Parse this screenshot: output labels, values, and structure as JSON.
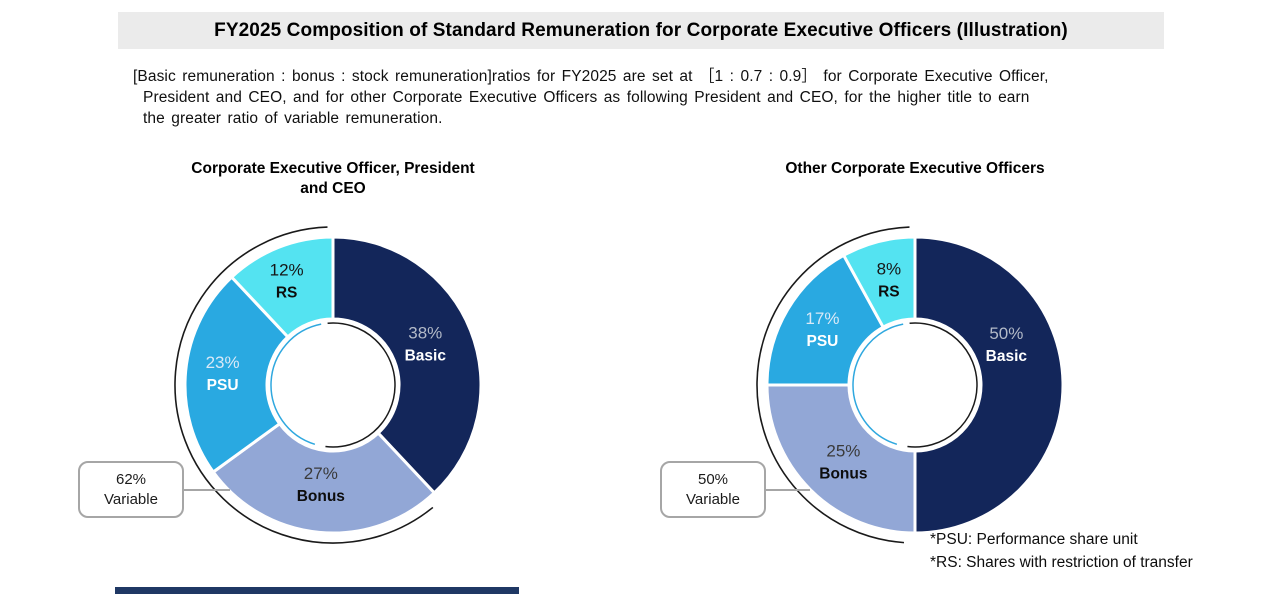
{
  "title_bar": {
    "text": "FY2025 Composition of Standard Remuneration for Corporate Executive Officers (Illustration)",
    "background": "#ebebeb"
  },
  "intro": {
    "lines": [
      "[Basic remuneration : bonus : stock remuneration]ratios for FY2025 are set at ［1 : 0.7 : 0.9］ for Corporate Executive Officer,",
      "President and CEO, and for other Corporate Executive Officers as following President and CEO, for the higher title to earn",
      "the greater ratio of variable remuneration."
    ]
  },
  "charts": [
    {
      "title_lines": [
        "Corporate Executive Officer, President",
        "and CEO"
      ],
      "callout": {
        "percent": "62%",
        "label": "Variable"
      },
      "segments": [
        {
          "name": "Basic",
          "percent_label": "38%",
          "value": 38,
          "color": "#13265a",
          "percent_color": "#b3bac8",
          "name_color": "#ffffff"
        },
        {
          "name": "Bonus",
          "percent_label": "27%",
          "value": 27,
          "color": "#92a7d6",
          "percent_color": "#3a3a3a",
          "name_color": "#0d0d0d"
        },
        {
          "name": "PSU",
          "percent_label": "23%",
          "value": 23,
          "color": "#29a9e1",
          "percent_color": "#d9e9f7",
          "name_color": "#ffffff"
        },
        {
          "name": "RS",
          "percent_label": "12%",
          "value": 12,
          "color": "#54e3f1",
          "percent_color": "#161616",
          "name_color": "#0d0d0d"
        }
      ]
    },
    {
      "title_lines": [
        "Other Corporate Executive Officers"
      ],
      "callout": {
        "percent": "50%",
        "label": "Variable"
      },
      "segments": [
        {
          "name": "Basic",
          "percent_label": "50%",
          "value": 50,
          "color": "#13265a",
          "percent_color": "#b3bac8",
          "name_color": "#ffffff"
        },
        {
          "name": "Bonus",
          "percent_label": "25%",
          "value": 25,
          "color": "#92a7d6",
          "percent_color": "#3a3a3a",
          "name_color": "#0d0d0d"
        },
        {
          "name": "PSU",
          "percent_label": "17%",
          "value": 17,
          "color": "#29a9e1",
          "percent_color": "#d9e9f7",
          "name_color": "#ffffff"
        },
        {
          "name": "RS",
          "percent_label": "8%",
          "value": 8,
          "color": "#54e3f1",
          "percent_color": "#161616",
          "name_color": "#0d0d0d"
        }
      ]
    }
  ],
  "footnotes": {
    "lines": [
      "*PSU: Performance share unit",
      "*RS: Shares with restriction of transfer"
    ]
  },
  "accent_colors": {
    "basic": "#13265a",
    "bonus": "#92a7d6",
    "psu": "#29a9e1",
    "rs": "#54e3f1",
    "bottom_bar": "#1f3864",
    "callout_border": "#a6a6a6"
  },
  "chart_data": [
    {
      "type": "pie",
      "subtype": "donut",
      "title": "Corporate Executive Officer, President and CEO",
      "labels": [
        "Basic",
        "Bonus",
        "PSU",
        "RS"
      ],
      "values": [
        38,
        27,
        23,
        12
      ],
      "colors": [
        "#13265a",
        "#92a7d6",
        "#29a9e1",
        "#54e3f1"
      ],
      "start_angle_deg": 0,
      "direction": "clockwise",
      "annotations": [
        "62% Variable arc spanning Bonus+PSU+RS"
      ]
    },
    {
      "type": "pie",
      "subtype": "donut",
      "title": "Other Corporate Executive Officers",
      "labels": [
        "Basic",
        "Bonus",
        "PSU",
        "RS"
      ],
      "values": [
        50,
        25,
        17,
        8
      ],
      "colors": [
        "#13265a",
        "#92a7d6",
        "#29a9e1",
        "#54e3f1"
      ],
      "start_angle_deg": 0,
      "direction": "clockwise",
      "annotations": [
        "50% Variable arc spanning Bonus+PSU+RS"
      ]
    }
  ]
}
